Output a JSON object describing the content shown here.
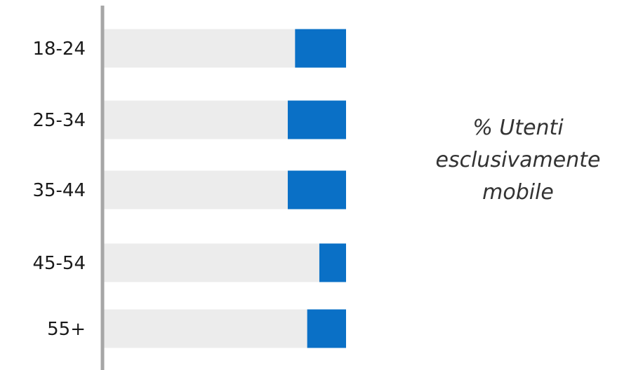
{
  "chart_data": {
    "type": "bar",
    "orientation": "horizontal",
    "stacked": true,
    "categories": [
      "18-24",
      "25-34",
      "35-44",
      "45-54",
      "55+"
    ],
    "values": [
      21,
      24,
      24,
      11,
      16
    ],
    "xlim": [
      0,
      100
    ],
    "grid": false,
    "legend": "none",
    "annotation": [
      "% Utenti",
      "esclusivamente",
      "mobile"
    ],
    "colors": {
      "highlight": "#0a70c6",
      "remainder": "#ececec",
      "axis": "#a6a6a6"
    }
  }
}
